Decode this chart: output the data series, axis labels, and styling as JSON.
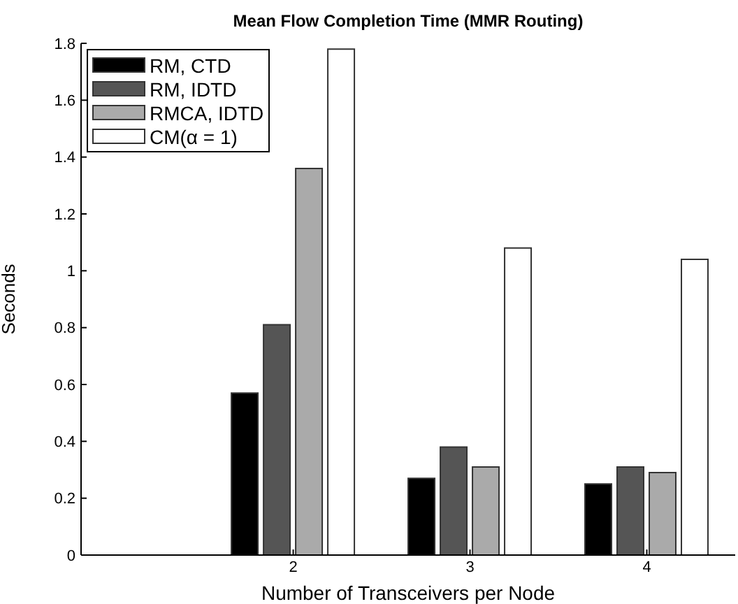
{
  "chart_data": {
    "type": "bar",
    "title": "Mean Flow Completion Time (MMR Routing)",
    "xlabel": "Number of Transceivers per Node",
    "ylabel": "Seconds",
    "x": [
      2,
      3,
      4
    ],
    "xlim": [
      0.8,
      4.5
    ],
    "xticks": [
      2,
      3,
      4
    ],
    "ylim": [
      0,
      1.8
    ],
    "yticks": [
      0,
      0.2,
      0.4,
      0.6,
      0.8,
      1,
      1.2,
      1.4,
      1.6,
      1.8
    ],
    "series": [
      {
        "name": "RM, CTD",
        "color": "#000000",
        "values": [
          0.57,
          0.27,
          0.25
        ]
      },
      {
        "name": "RM, IDTD",
        "color": "#555555",
        "values": [
          0.81,
          0.38,
          0.31
        ]
      },
      {
        "name": "RMCA, IDTD",
        "color": "#aaaaaa",
        "values": [
          1.36,
          0.31,
          0.29
        ]
      },
      {
        "name": "CM(α = 1)",
        "color": "#ffffff",
        "values": [
          1.78,
          1.08,
          1.04
        ]
      }
    ],
    "legend": "top left",
    "grid": false
  }
}
